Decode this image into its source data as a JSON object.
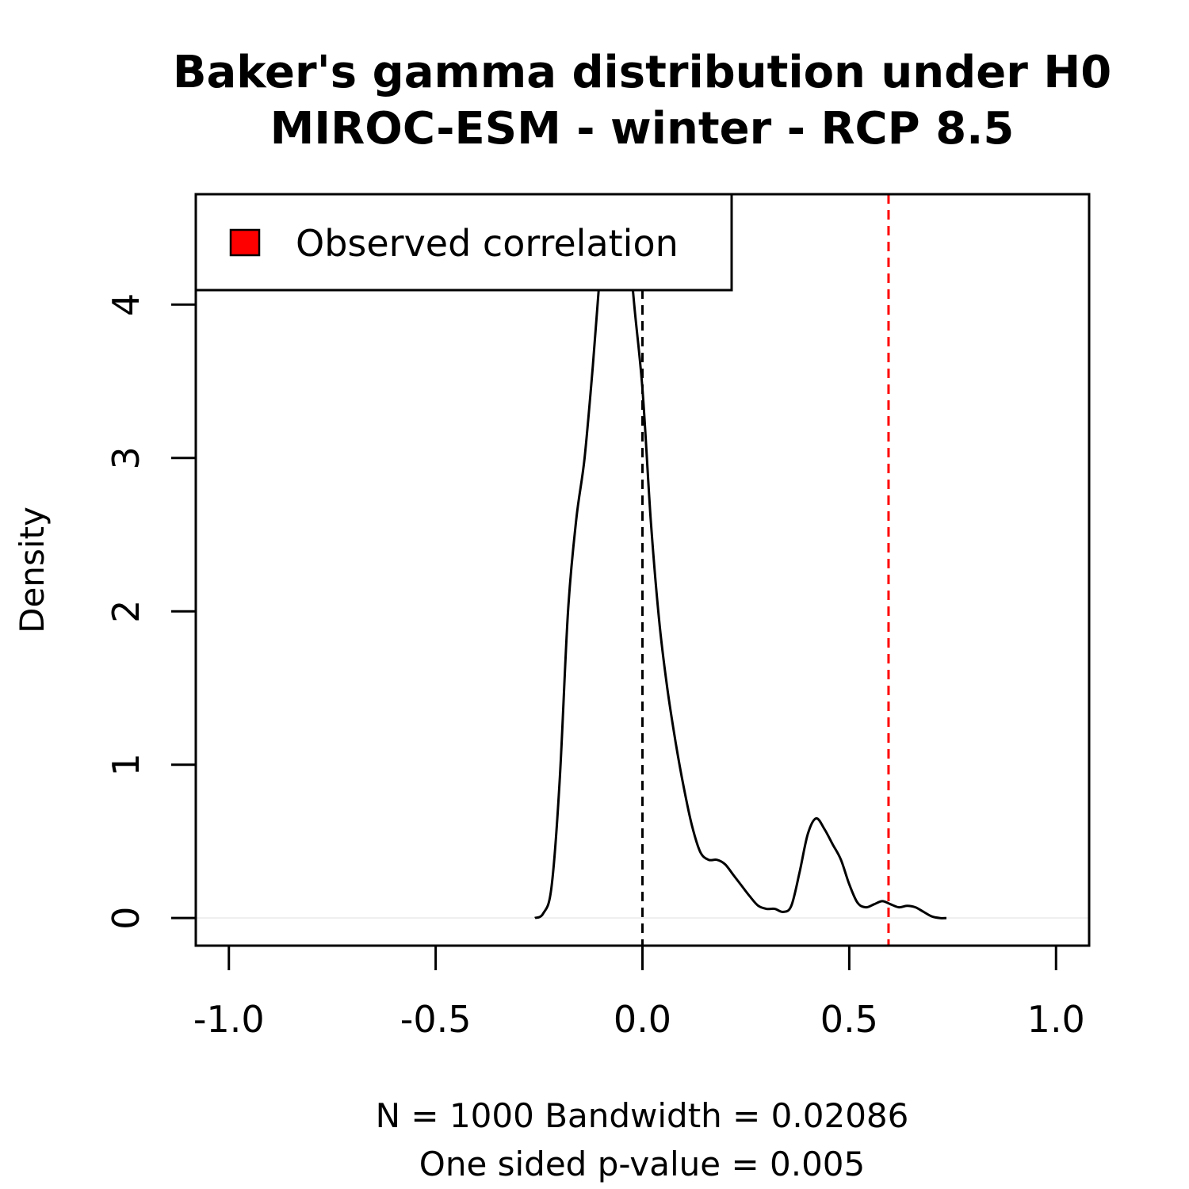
{
  "chart_data": {
    "type": "line",
    "title": "Baker's gamma distribution under H0",
    "subtitle": "MIROC-ESM - winter - RCP 8.5",
    "xlabel_line1": "N = 1000   Bandwidth = 0.02086",
    "xlabel_line2": "One sided p-value = 0.005",
    "ylabel": "Density",
    "xlim": [
      -1.08,
      1.08
    ],
    "ylim": [
      -0.18,
      4.72
    ],
    "x_ticks": [
      {
        "value": -1.0,
        "label": "-1.0"
      },
      {
        "value": -0.5,
        "label": "-0.5"
      },
      {
        "value": 0.0,
        "label": "0.0"
      },
      {
        "value": 0.5,
        "label": "0.5"
      },
      {
        "value": 1.0,
        "label": "1.0"
      }
    ],
    "y_ticks": [
      {
        "value": 0,
        "label": "0"
      },
      {
        "value": 1,
        "label": "1"
      },
      {
        "value": 2,
        "label": "2"
      },
      {
        "value": 3,
        "label": "3"
      },
      {
        "value": 4,
        "label": "4"
      }
    ],
    "density_curve": {
      "color": "#000000",
      "points": [
        [
          -0.26,
          0.0
        ],
        [
          -0.24,
          0.03
        ],
        [
          -0.22,
          0.2
        ],
        [
          -0.2,
          0.9
        ],
        [
          -0.18,
          2.0
        ],
        [
          -0.16,
          2.6
        ],
        [
          -0.14,
          3.0
        ],
        [
          -0.12,
          3.6
        ],
        [
          -0.1,
          4.3
        ],
        [
          -0.08,
          4.95
        ],
        [
          -0.06,
          5.15
        ],
        [
          -0.04,
          4.6
        ],
        [
          -0.02,
          4.0
        ],
        [
          0.0,
          3.45
        ],
        [
          0.02,
          2.6
        ],
        [
          0.04,
          1.95
        ],
        [
          0.06,
          1.5
        ],
        [
          0.08,
          1.15
        ],
        [
          0.1,
          0.85
        ],
        [
          0.12,
          0.6
        ],
        [
          0.14,
          0.43
        ],
        [
          0.16,
          0.38
        ],
        [
          0.18,
          0.38
        ],
        [
          0.2,
          0.35
        ],
        [
          0.22,
          0.28
        ],
        [
          0.24,
          0.21
        ],
        [
          0.26,
          0.14
        ],
        [
          0.28,
          0.08
        ],
        [
          0.3,
          0.06
        ],
        [
          0.32,
          0.06
        ],
        [
          0.34,
          0.04
        ],
        [
          0.36,
          0.08
        ],
        [
          0.38,
          0.3
        ],
        [
          0.4,
          0.55
        ],
        [
          0.42,
          0.65
        ],
        [
          0.44,
          0.58
        ],
        [
          0.46,
          0.48
        ],
        [
          0.48,
          0.38
        ],
        [
          0.5,
          0.22
        ],
        [
          0.52,
          0.1
        ],
        [
          0.54,
          0.07
        ],
        [
          0.56,
          0.09
        ],
        [
          0.58,
          0.11
        ],
        [
          0.6,
          0.09
        ],
        [
          0.62,
          0.07
        ],
        [
          0.64,
          0.08
        ],
        [
          0.66,
          0.07
        ],
        [
          0.68,
          0.04
        ],
        [
          0.7,
          0.01
        ],
        [
          0.72,
          0.0
        ],
        [
          0.735,
          0.0
        ]
      ]
    },
    "vlines": [
      {
        "x": 0.0,
        "color": "#000000",
        "style": "dashed"
      },
      {
        "x": 0.595,
        "color": "#ff0000",
        "style": "dashed"
      }
    ],
    "hline": {
      "y": 0,
      "color": "#eeeeee"
    },
    "legend": {
      "placement": "top-left",
      "entries": [
        {
          "label": "Observed correlation",
          "color": "#ff0000"
        }
      ]
    }
  }
}
